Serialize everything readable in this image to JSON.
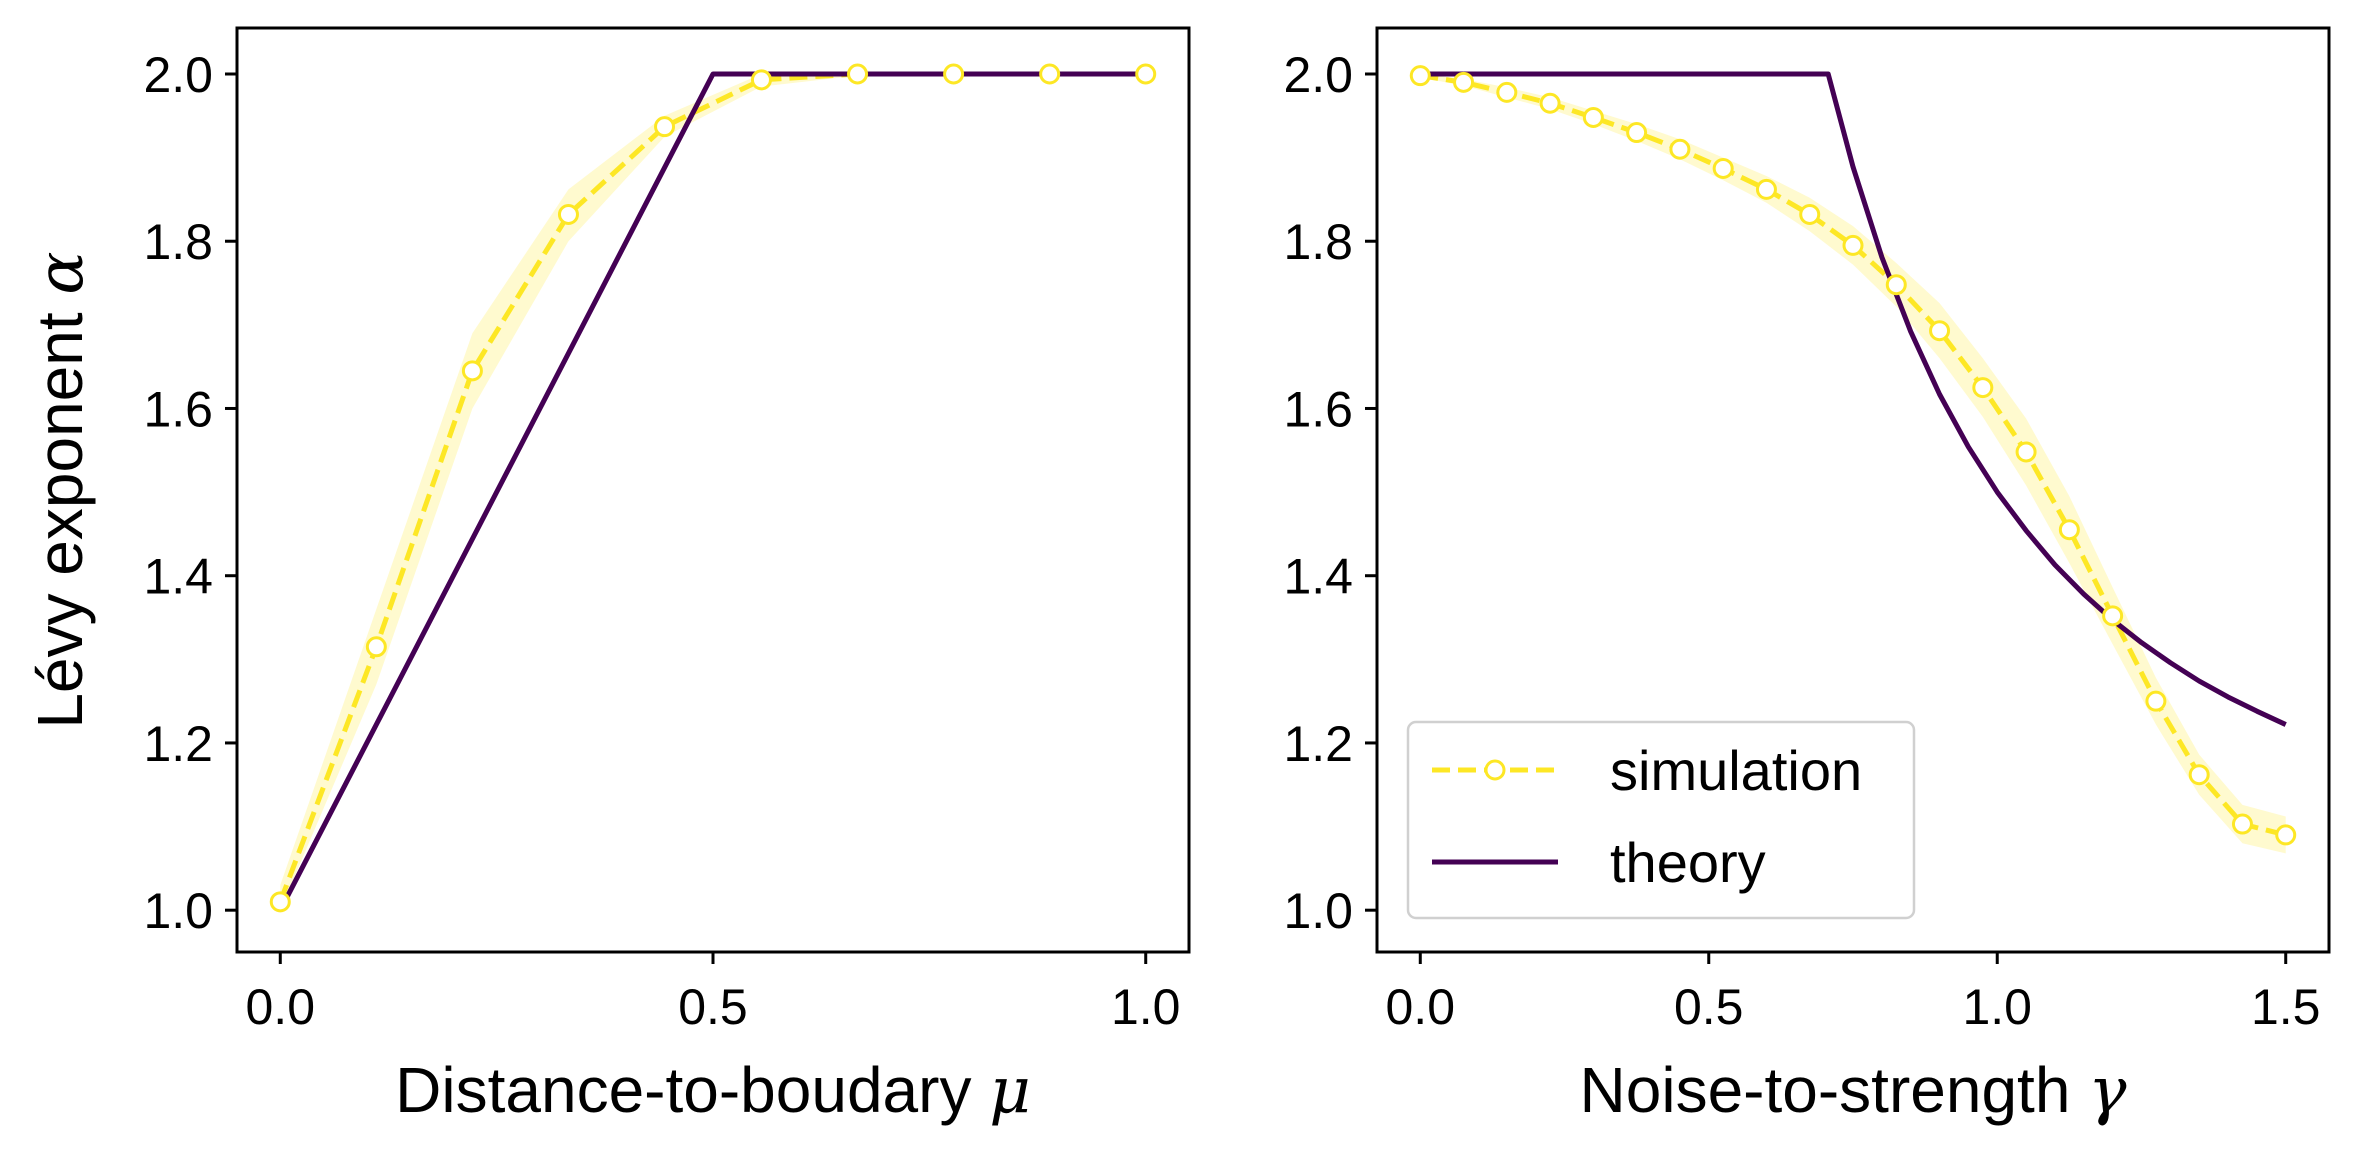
{
  "chart_data": [
    {
      "type": "line",
      "panel": "left",
      "title": "",
      "xlabel": "Distance-to-boudary",
      "xlabel_symbol": "μ",
      "ylabel": "Lévy exponent",
      "ylabel_symbol": "α",
      "xlim": [
        -0.05,
        1.05
      ],
      "ylim": [
        0.95,
        2.055
      ],
      "xticks": [
        0.0,
        0.5,
        1.0
      ],
      "xtick_labels": [
        "0.0",
        "0.5",
        "1.0"
      ],
      "yticks": [
        1.0,
        1.2,
        1.4,
        1.6,
        1.8,
        2.0
      ],
      "ytick_labels": [
        "1.0",
        "1.2",
        "1.4",
        "1.6",
        "1.8",
        "2.0"
      ],
      "grid": false,
      "series": [
        {
          "name": "simulation",
          "style": "dashed-with-hollow-circles",
          "color": "#fde725",
          "x": [
            0.0,
            0.111,
            0.222,
            0.333,
            0.444,
            0.556,
            0.667,
            0.778,
            0.889,
            1.0
          ],
          "y": [
            1.01,
            1.315,
            1.645,
            1.832,
            1.937,
            1.993,
            2.0,
            2.0,
            2.0,
            2.0
          ],
          "band_low": [
            1.0,
            1.27,
            1.6,
            1.8,
            1.925,
            1.985,
            1.998,
            1.998,
            1.998,
            1.998
          ],
          "band_high": [
            1.03,
            1.36,
            1.69,
            1.862,
            1.95,
            2.0,
            2.0,
            2.0,
            2.0,
            2.0
          ]
        },
        {
          "name": "theory",
          "style": "solid",
          "color": "#440154",
          "x": [
            0.0,
            0.5,
            1.0
          ],
          "y": [
            1.0,
            2.0,
            2.0
          ]
        }
      ]
    },
    {
      "type": "line",
      "panel": "right",
      "title": "",
      "xlabel": "Noise-to-strength",
      "xlabel_symbol": "γ",
      "ylabel": "",
      "xlim": [
        -0.075,
        1.575
      ],
      "ylim": [
        0.95,
        2.055
      ],
      "xticks": [
        0.0,
        0.5,
        1.0,
        1.5
      ],
      "xtick_labels": [
        "0.0",
        "0.5",
        "1.0",
        "1.5"
      ],
      "yticks": [
        1.0,
        1.2,
        1.4,
        1.6,
        1.8,
        2.0
      ],
      "ytick_labels": [
        "1.0",
        "1.2",
        "1.4",
        "1.6",
        "1.8",
        "2.0"
      ],
      "grid": false,
      "legend": {
        "placement": "lower-left",
        "entries": [
          {
            "label": "simulation",
            "color": "#fde725",
            "style": "dashed-with-hollow-circles"
          },
          {
            "label": "theory",
            "color": "#440154",
            "style": "solid"
          }
        ]
      },
      "series": [
        {
          "name": "simulation",
          "style": "dashed-with-hollow-circles",
          "color": "#fde725",
          "x": [
            0.0,
            0.075,
            0.15,
            0.225,
            0.3,
            0.375,
            0.45,
            0.525,
            0.6,
            0.675,
            0.75,
            0.825,
            0.9,
            0.975,
            1.05,
            1.125,
            1.2,
            1.275,
            1.35,
            1.425,
            1.5
          ],
          "y": [
            1.998,
            1.99,
            1.978,
            1.965,
            1.948,
            1.93,
            1.91,
            1.887,
            1.862,
            1.832,
            1.795,
            1.748,
            1.693,
            1.625,
            1.548,
            1.455,
            1.352,
            1.25,
            1.162,
            1.103,
            1.09
          ],
          "band_low": [
            1.996,
            1.986,
            1.972,
            1.958,
            1.94,
            1.92,
            1.898,
            1.873,
            1.846,
            1.812,
            1.772,
            1.722,
            1.66,
            1.59,
            1.508,
            1.415,
            1.318,
            1.222,
            1.138,
            1.08,
            1.068
          ],
          "band_high": [
            2.0,
            1.994,
            1.984,
            1.972,
            1.956,
            1.94,
            1.922,
            1.9,
            1.878,
            1.852,
            1.818,
            1.774,
            1.726,
            1.66,
            1.588,
            1.495,
            1.386,
            1.278,
            1.186,
            1.126,
            1.112
          ]
        },
        {
          "name": "theory",
          "style": "solid",
          "color": "#440154",
          "x": [
            0.0,
            0.707,
            0.75,
            0.8,
            0.85,
            0.9,
            0.95,
            1.0,
            1.05,
            1.1,
            1.15,
            1.2,
            1.25,
            1.3,
            1.35,
            1.4,
            1.45,
            1.5
          ],
          "y": [
            2.0,
            2.0,
            1.889,
            1.781,
            1.692,
            1.617,
            1.554,
            1.5,
            1.454,
            1.413,
            1.378,
            1.347,
            1.32,
            1.296,
            1.274,
            1.255,
            1.238,
            1.222
          ]
        }
      ]
    }
  ]
}
